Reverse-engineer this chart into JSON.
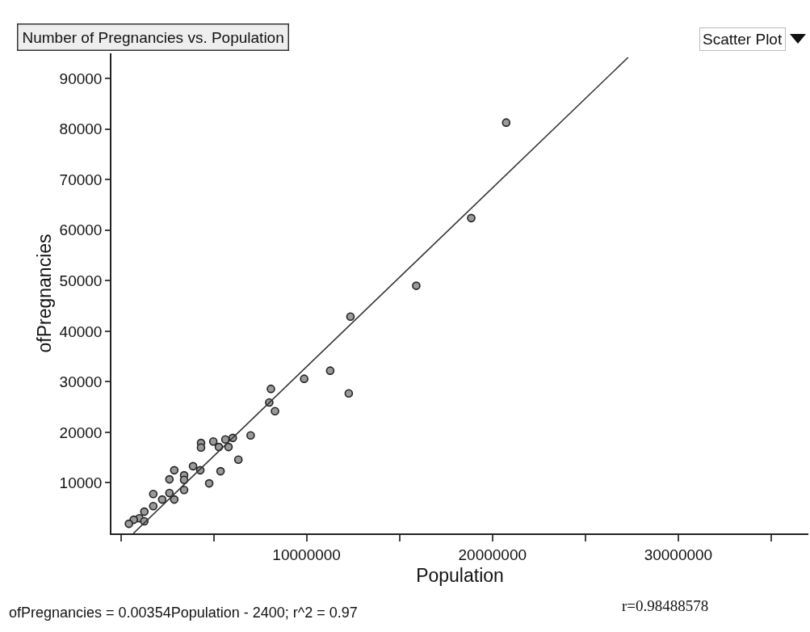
{
  "chart_data": {
    "type": "scatter",
    "title": "Number of Pregnancies vs. Population",
    "xlabel": "Population",
    "ylabel": "ofPregnancies",
    "annotations": [
      "Scatter Plot",
      "ofPregnancies = 0.00354Population - 2400; r^2 = 0.97",
      "r=0.98488578"
    ],
    "xlim": [
      -500000,
      37000000
    ],
    "ylim": [
      0,
      95000
    ],
    "xticks": [
      {
        "value": 0,
        "label": null
      },
      {
        "value": 5000000,
        "label": null
      },
      10000000,
      {
        "value": 15000000,
        "label": null
      },
      20000000,
      {
        "value": 25000000,
        "label": null
      },
      30000000,
      {
        "value": 35000000,
        "label": null
      }
    ],
    "yticks": [
      10000,
      20000,
      30000,
      40000,
      50000,
      60000,
      70000,
      80000,
      90000
    ],
    "grid": false,
    "marker": "circle",
    "series": [
      {
        "color": "#9a9a9a",
        "x": [
          20740000,
          18860000,
          15900000,
          12360000,
          11270000,
          9870000,
          12270000,
          8080000,
          7990000,
          8300000,
          6990000,
          6030000,
          5630000,
          5800000,
          5280000,
          4980000,
          4320000,
          4320000,
          6330000,
          5370000,
          4760000,
          4280000,
          3890000,
          3410000,
          3410000,
          3410000,
          2880000,
          2620000,
          2620000,
          2880000,
          1750000,
          2230000,
          1750000,
          1270000,
          1000000,
          1270000,
          700000,
          440000
        ],
        "values": [
          81300,
          62400,
          49000,
          42900,
          32200,
          30600,
          27700,
          28600,
          25900,
          24200,
          19400,
          18900,
          18600,
          17100,
          17100,
          18200,
          17900,
          17000,
          14600,
          12300,
          9900,
          12500,
          13300,
          11500,
          10600,
          8600,
          12500,
          10700,
          8000,
          6700,
          7800,
          6700,
          5400,
          4300,
          3000,
          2400,
          2700,
          1900
        ]
      },
      {
        "type": "line",
        "color": "#333333",
        "x": [
          680000,
          27300000
        ],
        "values": [
          0,
          94200
        ],
        "marker": "none",
        "line_style": "solid"
      }
    ]
  }
}
